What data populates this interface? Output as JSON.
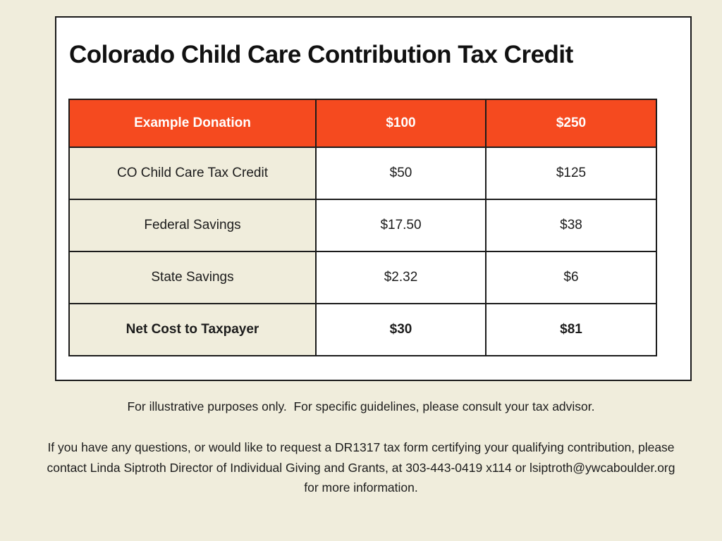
{
  "card": {
    "title": "Colorado Child Care Contribution Tax Credit"
  },
  "table": {
    "header": [
      "Example Donation",
      "$100",
      "$250"
    ],
    "rows": [
      {
        "label": "CO Child Care Tax Credit",
        "values": [
          "$50",
          "$125"
        ]
      },
      {
        "label": "Federal Savings",
        "values": [
          "$17.50",
          "$38"
        ]
      },
      {
        "label": "State Savings",
        "values": [
          "$2.32",
          "$6"
        ]
      },
      {
        "label": "Net Cost to Taxpayer",
        "values": [
          "$30",
          "$81"
        ]
      }
    ]
  },
  "footer": {
    "disclaimer": "For illustrative purposes only.  For specific guidelines, please consult your tax advisor.",
    "contact": "If you have any questions, or would like to request a DR1317 tax form certifying your qualifying contribution, please contact Linda Siptroth Director of Individual Giving and Grants, at 303-443-0419 x114 or lsiptroth@ywcaboulder.org for more information."
  },
  "colors": {
    "page_background": "#F0EDDC",
    "card_background": "#FFFFFF",
    "table_header_background": "#F54A1F",
    "table_header_text": "#FFFFFF",
    "label_cell_background": "#F0EDDC",
    "border": "#1B1B1B",
    "text": "#1C1C1C"
  }
}
